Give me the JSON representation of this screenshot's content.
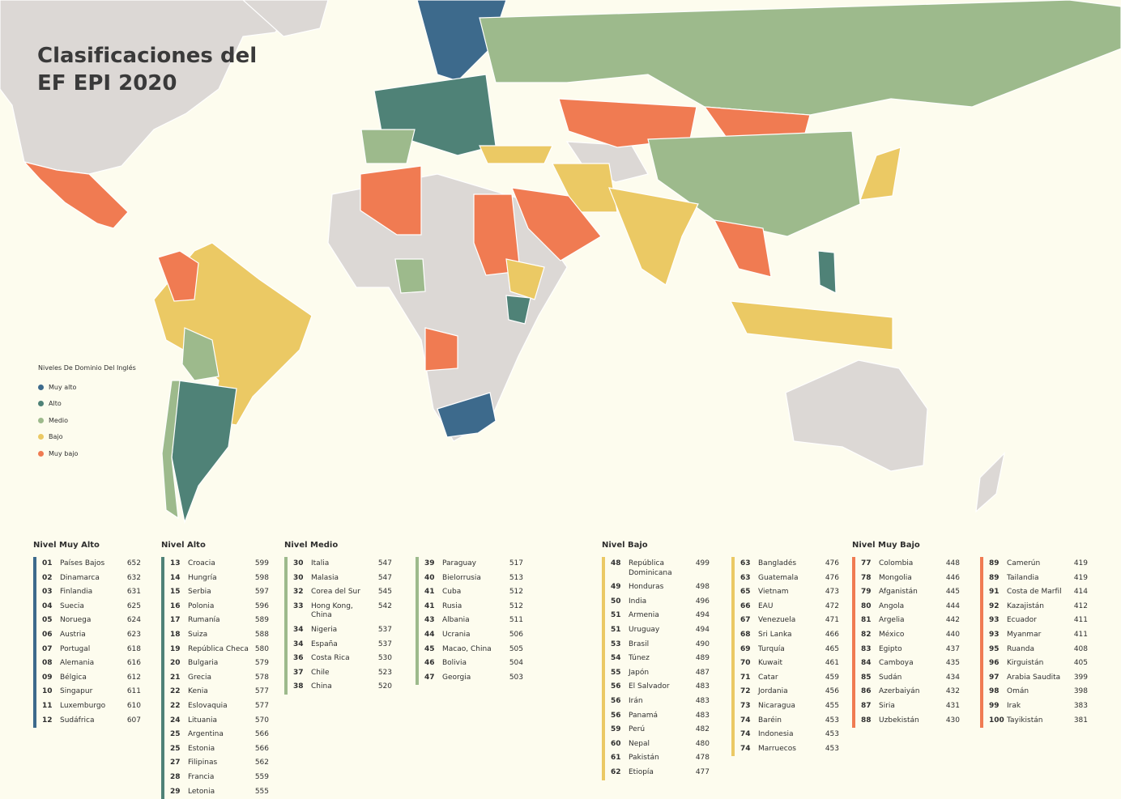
{
  "title": "Clasificaciones del EF EPI 2020",
  "legend": {
    "title": "Niveles De Dominio Del Inglés",
    "items": [
      {
        "label": "Muy alto",
        "color": "#3d6a8c"
      },
      {
        "label": "Alto",
        "color": "#4f8277"
      },
      {
        "label": "Medio",
        "color": "#9dba8c"
      },
      {
        "label": "Bajo",
        "color": "#ebc964"
      },
      {
        "label": "Muy bajo",
        "color": "#f07b52"
      }
    ]
  },
  "groups": [
    {
      "title": "Nivel Muy Alto",
      "color": "#3d6a8c",
      "columns": [
        [
          {
            "rank": "01",
            "country": "Países Bajos",
            "score": 652
          },
          {
            "rank": "02",
            "country": "Dinamarca",
            "score": 632
          },
          {
            "rank": "03",
            "country": "Finlandia",
            "score": 631
          },
          {
            "rank": "04",
            "country": "Suecia",
            "score": 625
          },
          {
            "rank": "05",
            "country": "Noruega",
            "score": 624
          },
          {
            "rank": "06",
            "country": "Austria",
            "score": 623
          },
          {
            "rank": "07",
            "country": "Portugal",
            "score": 618
          },
          {
            "rank": "08",
            "country": "Alemania",
            "score": 616
          },
          {
            "rank": "09",
            "country": "Bélgica",
            "score": 612
          },
          {
            "rank": "10",
            "country": "Singapur",
            "score": 611
          },
          {
            "rank": "11",
            "country": "Luxemburgo",
            "score": 610
          },
          {
            "rank": "12",
            "country": "Sudáfrica",
            "score": 607
          }
        ]
      ]
    },
    {
      "title": "Nivel Alto",
      "color": "#4f8277",
      "columns": [
        [
          {
            "rank": "13",
            "country": "Croacia",
            "score": 599
          },
          {
            "rank": "14",
            "country": "Hungría",
            "score": 598
          },
          {
            "rank": "15",
            "country": "Serbia",
            "score": 597
          },
          {
            "rank": "16",
            "country": "Polonia",
            "score": 596
          },
          {
            "rank": "17",
            "country": "Rumanía",
            "score": 589
          },
          {
            "rank": "18",
            "country": "Suiza",
            "score": 588
          },
          {
            "rank": "19",
            "country": "República Checa",
            "score": 580
          },
          {
            "rank": "20",
            "country": "Bulgaria",
            "score": 579
          },
          {
            "rank": "21",
            "country": "Grecia",
            "score": 578
          },
          {
            "rank": "22",
            "country": "Kenia",
            "score": 577
          },
          {
            "rank": "22",
            "country": "Eslovaquia",
            "score": 577
          },
          {
            "rank": "24",
            "country": "Lituania",
            "score": 570
          },
          {
            "rank": "25",
            "country": "Argentina",
            "score": 566
          },
          {
            "rank": "25",
            "country": "Estonia",
            "score": 566
          },
          {
            "rank": "27",
            "country": "Filipinas",
            "score": 562
          },
          {
            "rank": "28",
            "country": "Francia",
            "score": 559
          },
          {
            "rank": "29",
            "country": "Letonia",
            "score": 555
          }
        ]
      ]
    },
    {
      "title": "Nivel Medio",
      "color": "#9dba8c",
      "columns": [
        [
          {
            "rank": "30",
            "country": "Italia",
            "score": 547
          },
          {
            "rank": "30",
            "country": "Malasia",
            "score": 547
          },
          {
            "rank": "32",
            "country": "Corea del Sur",
            "score": 545
          },
          {
            "rank": "33",
            "country": "Hong Kong, China",
            "score": 542
          },
          {
            "rank": "34",
            "country": "Nigeria",
            "score": 537
          },
          {
            "rank": "34",
            "country": "España",
            "score": 537
          },
          {
            "rank": "36",
            "country": "Costa Rica",
            "score": 530
          },
          {
            "rank": "37",
            "country": "Chile",
            "score": 523
          },
          {
            "rank": "38",
            "country": "China",
            "score": 520
          }
        ],
        [
          {
            "rank": "39",
            "country": "Paraguay",
            "score": 517
          },
          {
            "rank": "40",
            "country": "Bielorrusia",
            "score": 513
          },
          {
            "rank": "41",
            "country": "Cuba",
            "score": 512
          },
          {
            "rank": "41",
            "country": "Rusia",
            "score": 512
          },
          {
            "rank": "43",
            "country": "Albania",
            "score": 511
          },
          {
            "rank": "44",
            "country": "Ucrania",
            "score": 506
          },
          {
            "rank": "45",
            "country": "Macao, China",
            "score": 505
          },
          {
            "rank": "46",
            "country": "Bolivia",
            "score": 504
          },
          {
            "rank": "47",
            "country": "Georgia",
            "score": 503
          }
        ]
      ]
    },
    {
      "title": "Nivel Bajo",
      "color": "#ebc964",
      "columns": [
        [
          {
            "rank": "48",
            "country": "República Dominicana",
            "score": 499
          },
          {
            "rank": "49",
            "country": "Honduras",
            "score": 498
          },
          {
            "rank": "50",
            "country": "India",
            "score": 496
          },
          {
            "rank": "51",
            "country": "Armenia",
            "score": 494
          },
          {
            "rank": "51",
            "country": "Uruguay",
            "score": 494
          },
          {
            "rank": "53",
            "country": "Brasil",
            "score": 490
          },
          {
            "rank": "54",
            "country": "Túnez",
            "score": 489
          },
          {
            "rank": "55",
            "country": "Japón",
            "score": 487
          },
          {
            "rank": "56",
            "country": "El Salvador",
            "score": 483
          },
          {
            "rank": "56",
            "country": "Irán",
            "score": 483
          },
          {
            "rank": "56",
            "country": "Panamá",
            "score": 483
          },
          {
            "rank": "59",
            "country": "Perú",
            "score": 482
          },
          {
            "rank": "60",
            "country": "Nepal",
            "score": 480
          },
          {
            "rank": "61",
            "country": "Pakistán",
            "score": 478
          },
          {
            "rank": "62",
            "country": "Etiopía",
            "score": 477
          }
        ],
        [
          {
            "rank": "63",
            "country": "Bangladés",
            "score": 476
          },
          {
            "rank": "63",
            "country": "Guatemala",
            "score": 476
          },
          {
            "rank": "65",
            "country": "Vietnam",
            "score": 473
          },
          {
            "rank": "66",
            "country": "EAU",
            "score": 472
          },
          {
            "rank": "67",
            "country": "Venezuela",
            "score": 471
          },
          {
            "rank": "68",
            "country": "Sri Lanka",
            "score": 466
          },
          {
            "rank": "69",
            "country": "Turquía",
            "score": 465
          },
          {
            "rank": "70",
            "country": "Kuwait",
            "score": 461
          },
          {
            "rank": "71",
            "country": "Catar",
            "score": 459
          },
          {
            "rank": "72",
            "country": "Jordania",
            "score": 456
          },
          {
            "rank": "73",
            "country": "Nicaragua",
            "score": 455
          },
          {
            "rank": "74",
            "country": "Baréin",
            "score": 453
          },
          {
            "rank": "74",
            "country": "Indonesia",
            "score": 453
          },
          {
            "rank": "74",
            "country": "Marruecos",
            "score": 453
          }
        ]
      ]
    },
    {
      "title": "Nivel Muy Bajo",
      "color": "#f07b52",
      "columns": [
        [
          {
            "rank": "77",
            "country": "Colombia",
            "score": 448
          },
          {
            "rank": "78",
            "country": "Mongolia",
            "score": 446
          },
          {
            "rank": "79",
            "country": "Afganistán",
            "score": 445
          },
          {
            "rank": "80",
            "country": "Angola",
            "score": 444
          },
          {
            "rank": "81",
            "country": "Argelia",
            "score": 442
          },
          {
            "rank": "82",
            "country": "México",
            "score": 440
          },
          {
            "rank": "83",
            "country": "Egipto",
            "score": 437
          },
          {
            "rank": "84",
            "country": "Camboya",
            "score": 435
          },
          {
            "rank": "85",
            "country": "Sudán",
            "score": 434
          },
          {
            "rank": "86",
            "country": "Azerbaiyán",
            "score": 432
          },
          {
            "rank": "87",
            "country": "Siria",
            "score": 431
          },
          {
            "rank": "88",
            "country": "Uzbekistán",
            "score": 430
          }
        ],
        [
          {
            "rank": "89",
            "country": "Camerún",
            "score": 419
          },
          {
            "rank": "89",
            "country": "Tailandia",
            "score": 419
          },
          {
            "rank": "91",
            "country": "Costa de Marfil",
            "score": 414
          },
          {
            "rank": "92",
            "country": "Kazajistán",
            "score": 412
          },
          {
            "rank": "93",
            "country": "Ecuador",
            "score": 411
          },
          {
            "rank": "93",
            "country": "Myanmar",
            "score": 411
          },
          {
            "rank": "95",
            "country": "Ruanda",
            "score": 408
          },
          {
            "rank": "96",
            "country": "Kirguistán",
            "score": 405
          },
          {
            "rank": "97",
            "country": "Arabia Saudita",
            "score": 399
          },
          {
            "rank": "98",
            "country": "Omán",
            "score": 398
          },
          {
            "rank": "99",
            "country": "Irak",
            "score": 383
          },
          {
            "rank": "100",
            "country": "Tayikistán",
            "score": 381
          }
        ]
      ]
    }
  ]
}
